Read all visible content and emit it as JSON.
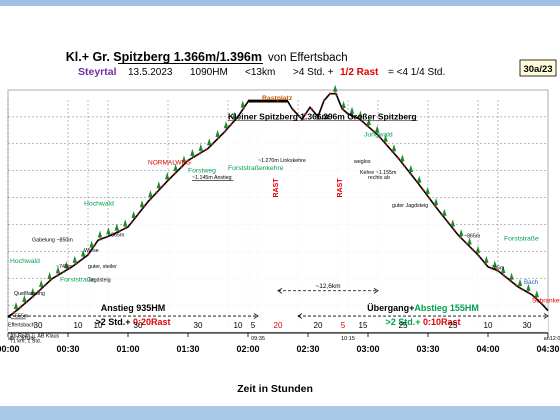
{
  "header": {
    "title_a": "Kl.+ Gr. Spitzberg 1.366m/1.396m",
    "title_b": "von Effertsbach",
    "route_kind": "Steyrtal",
    "date": "13.5.2023",
    "hm": "1090HM",
    "distance": "<13km",
    "time_a": ">4 Std. +",
    "rest": "1/2 Rast",
    "time_b": "= <4 1/4 Std.",
    "badge": "30a/23"
  },
  "colors": {
    "title": "#000000",
    "steyrtal": "#7030a0",
    "rest": "#e00000",
    "green_text": "#00a050",
    "profile": "#000000",
    "fill": "#ffffff",
    "tree": "#1f8a2c",
    "marker": "#a01818",
    "grid": "#333333"
  },
  "chart_data": {
    "type": "line",
    "title": "Kl.+ Gr. Spitzberg 1.366m/1.396m",
    "xlabel": "Zeit in Stunden",
    "ylabel": "",
    "x_unit": "minutes",
    "xlim": [
      0,
      270
    ],
    "ylim": [
      500,
      1410
    ],
    "grid": true,
    "xticks": [
      {
        "x": 0,
        "label": "00:00"
      },
      {
        "x": 30,
        "label": "00:30"
      },
      {
        "x": 60,
        "label": "01:00"
      },
      {
        "x": 90,
        "label": "01:30"
      },
      {
        "x": 120,
        "label": "02:00"
      },
      {
        "x": 150,
        "label": "02:30"
      },
      {
        "x": 180,
        "label": "03:00"
      },
      {
        "x": 210,
        "label": "03:30"
      },
      {
        "x": 240,
        "label": "04:00"
      },
      {
        "x": 270,
        "label": "04:30"
      }
    ],
    "profile": {
      "x": [
        0,
        5,
        12,
        22,
        32,
        40,
        45,
        52,
        60,
        70,
        80,
        90,
        100,
        108,
        115,
        120,
        125,
        132,
        140,
        142,
        147,
        151,
        155,
        158,
        161,
        164,
        167,
        170,
        176,
        185,
        195,
        205,
        215,
        225,
        235,
        240,
        245,
        250,
        255,
        262,
        267,
        270
      ],
      "y": [
        555,
        585,
        630,
        700,
        745,
        790,
        845,
        865,
        895,
        990,
        1070,
        1145,
        1190,
        1250,
        1310,
        1366,
        1366,
        1366,
        1366,
        1340,
        1300,
        1345,
        1310,
        1370,
        1396,
        1396,
        1340,
        1320,
        1300,
        1240,
        1155,
        1060,
        960,
        865,
        790,
        745,
        730,
        700,
        670,
        640,
        605,
        580
      ]
    },
    "segments": [
      {
        "from": 0,
        "to": 30,
        "label": "30"
      },
      {
        "from": 30,
        "to": 40,
        "label": "10"
      },
      {
        "from": 40,
        "to": 50,
        "label": "10"
      },
      {
        "from": 50,
        "to": 80,
        "label": "30"
      },
      {
        "from": 80,
        "to": 110,
        "label": "30"
      },
      {
        "from": 110,
        "to": 120,
        "label": "10"
      },
      {
        "from": 120,
        "to": 125,
        "label": "5"
      },
      {
        "from": 125,
        "to": 145,
        "label": "20",
        "rest": true
      },
      {
        "from": 145,
        "to": 165,
        "label": "20"
      },
      {
        "from": 165,
        "to": 170,
        "label": "5",
        "rest": true
      },
      {
        "from": 170,
        "to": 185,
        "label": "15"
      },
      {
        "from": 185,
        "to": 210,
        "label": "25"
      },
      {
        "from": 210,
        "to": 235,
        "label": "25"
      },
      {
        "from": 235,
        "to": 245,
        "label": "10"
      },
      {
        "from": 245,
        "to": 275,
        "label": "30"
      }
    ],
    "clock_marks": [
      {
        "x": 0,
        "label": "ab 7:30Uhr"
      },
      {
        "x": 125,
        "label": "09:35"
      },
      {
        "x": 170,
        "label": "10:15"
      },
      {
        "x": 272,
        "label": "an12:0"
      }
    ],
    "rest_marks": [
      {
        "x": 135,
        "label": "RAST"
      },
      {
        "x": 167,
        "label": "RAST"
      }
    ],
    "labels": [
      {
        "x": 1,
        "y": 480,
        "text": "Ab Reith ü. AB Klaus"
      },
      {
        "x": 1,
        "y": 460,
        "text": "71 km, 1 Std."
      },
      {
        "x": 2,
        "y": 555,
        "text": "~555m",
        "underline": true
      },
      {
        "x": 0,
        "y": 520,
        "text": "Effertsbach"
      },
      {
        "x": 3,
        "y": 640,
        "text": "Quellfassung"
      },
      {
        "x": 1,
        "y": 760,
        "text": "Hochwald",
        "kind": "green"
      },
      {
        "x": 26,
        "y": 690,
        "text": "Forststraße",
        "kind": "green"
      },
      {
        "x": 12,
        "y": 840,
        "text": "Gabelung ~850m"
      },
      {
        "x": 24,
        "y": 740,
        "text": "~745m"
      },
      {
        "x": 38,
        "y": 800,
        "text": "Wiese"
      },
      {
        "x": 50,
        "y": 860,
        "text": "~865m"
      },
      {
        "x": 38,
        "y": 975,
        "text": "Hochwald",
        "kind": "green"
      },
      {
        "x": 40,
        "y": 740,
        "text": "guter, steiler"
      },
      {
        "x": 40,
        "y": 690,
        "text": "Jagdsteig"
      },
      {
        "x": 70,
        "y": 1130,
        "text": "NORMALWEG",
        "kind": "red"
      },
      {
        "x": 90,
        "y": 1100,
        "text": "Forstweg",
        "kind": "green"
      },
      {
        "x": 92,
        "y": 1075,
        "text": "~1.145m Anstieg",
        "underline": true
      },
      {
        "x": 110,
        "y": 1110,
        "text": "Forststraßenkehre",
        "kind": "green"
      },
      {
        "x": 125,
        "y": 1140,
        "text": "~1.270m Linkskehre"
      },
      {
        "x": 110,
        "y": 1300,
        "text": "Kleiner Spitzberg 1.366m",
        "kind": "big",
        "underline": true
      },
      {
        "x": 127,
        "y": 1372,
        "text": "Rastplatz",
        "kind": "orange"
      },
      {
        "x": 154,
        "y": 1300,
        "text": "1.396m Großer Spitzberg",
        "kind": "big",
        "underline": true
      },
      {
        "x": 178,
        "y": 1235,
        "text": "Jungwald",
        "kind": "green"
      },
      {
        "x": 173,
        "y": 1135,
        "text": "weglos"
      },
      {
        "x": 176,
        "y": 1095,
        "text": "Kehre ~1.155m"
      },
      {
        "x": 180,
        "y": 1075,
        "text": "rechts ab"
      },
      {
        "x": 192,
        "y": 970,
        "text": "guter Jagdsteig"
      },
      {
        "x": 228,
        "y": 855,
        "text": "~865m"
      },
      {
        "x": 248,
        "y": 845,
        "text": "Forststraße",
        "kind": "green"
      },
      {
        "x": 240,
        "y": 735,
        "text": "~745m"
      },
      {
        "x": 258,
        "y": 680,
        "text": "Bach",
        "kind": "blue"
      },
      {
        "x": 262,
        "y": 610,
        "text": "Schranken",
        "kind": "red"
      }
    ],
    "spans": [
      {
        "x1": 0,
        "x2": 125,
        "y": 560,
        "label": "Anstieg 935HM",
        "sub": ">2 Std.+ ",
        "sub_rest": "0:20Rast"
      },
      {
        "x1": 145,
        "x2": 270,
        "y": 560,
        "label": "Übergang+",
        "label_green": "Abstieg 155HM",
        "sub": ">2 Std.+ ",
        "sub_rest": "0:10Rast"
      },
      {
        "x1": 135,
        "x2": 185,
        "y": 655,
        "label": "~12,6km"
      }
    ]
  }
}
